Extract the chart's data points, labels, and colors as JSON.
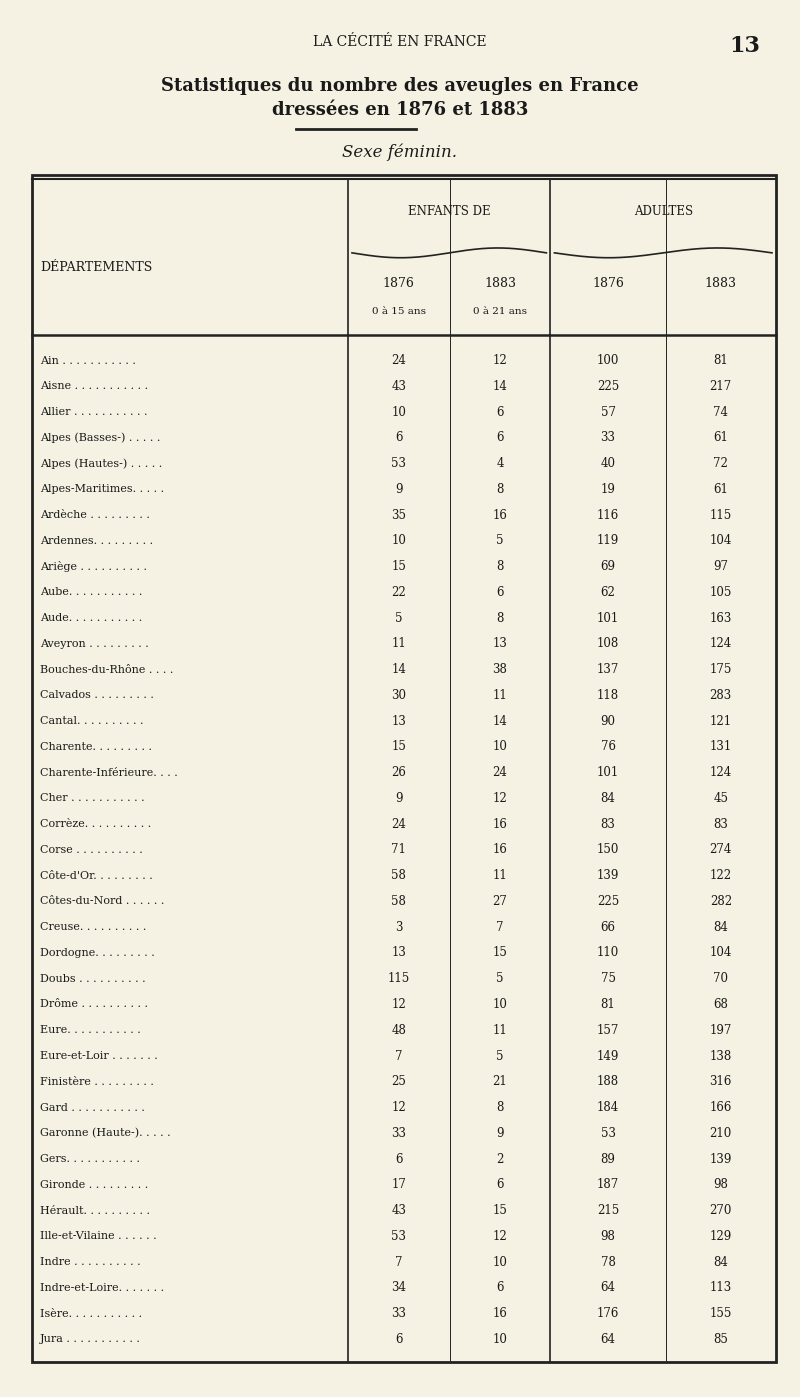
{
  "page_header": "LA CÉCITÉ EN FRANCE",
  "page_number": "13",
  "title_line1": "Statistiques du nombre des aveugles en France",
  "title_line2": "dressées en 1876 et 1883",
  "subtitle": "Sexe féminin.",
  "col_header_enfants": "ENFANTS DE",
  "col_header_adultes": "ADULTES",
  "col_sub1": "1876",
  "col_sub2": "1883",
  "col_sub1_note": "0 à 15 ans",
  "col_sub2_note": "0 à 21 ans",
  "col_sub3": "1876",
  "col_sub4": "1883",
  "col_dept": "DÉPARTEMENTS",
  "rows": [
    [
      "Ain . . . . . . . . . . .",
      "24",
      "12",
      "100",
      "81"
    ],
    [
      "Aisne . . . . . . . . . . .",
      "43",
      "14",
      "225",
      "217"
    ],
    [
      "Allier . . . . . . . . . . .",
      "10",
      "6",
      "57",
      "74"
    ],
    [
      "Alpes (Basses-) . . . . .",
      "6",
      "6",
      "33",
      "61"
    ],
    [
      "Alpes (Hautes-) . . . . .",
      "53",
      "4",
      "40",
      "72"
    ],
    [
      "Alpes-Maritimes. . . . .",
      "9",
      "8",
      "19",
      "61"
    ],
    [
      "Ardèche . . . . . . . . .",
      "35",
      "16",
      "116",
      "115"
    ],
    [
      "Ardennes. . . . . . . . .",
      "10",
      "5",
      "119",
      "104"
    ],
    [
      "Ariège . . . . . . . . . .",
      "15",
      "8",
      "69",
      "97"
    ],
    [
      "Aube. . . . . . . . . . .",
      "22",
      "6",
      "62",
      "105"
    ],
    [
      "Aude. . . . . . . . . . .",
      "5",
      "8",
      "101",
      "163"
    ],
    [
      "Aveyron . . . . . . . . .",
      "11",
      "13",
      "108",
      "124"
    ],
    [
      "Bouches-du-Rhône . . . .",
      "14",
      "38",
      "137",
      "175"
    ],
    [
      "Calvados . . . . . . . . .",
      "30",
      "11",
      "118",
      "283"
    ],
    [
      "Cantal. . . . . . . . . .",
      "13",
      "14",
      "90",
      "121"
    ],
    [
      "Charente. . . . . . . . .",
      "15",
      "10",
      "76",
      "131"
    ],
    [
      "Charente-Inférieure. . . .",
      "26",
      "24",
      "101",
      "124"
    ],
    [
      "Cher . . . . . . . . . . .",
      "9",
      "12",
      "84",
      "45"
    ],
    [
      "Corrèze. . . . . . . . . .",
      "24",
      "16",
      "83",
      "83"
    ],
    [
      "Corse . . . . . . . . . .",
      "71",
      "16",
      "150",
      "274"
    ],
    [
      "Côte-d'Or. . . . . . . . .",
      "58",
      "11",
      "139",
      "122"
    ],
    [
      "Côtes-du-Nord . . . . . .",
      "58",
      "27",
      "225",
      "282"
    ],
    [
      "Creuse. . . . . . . . . .",
      "3",
      "7",
      "66",
      "84"
    ],
    [
      "Dordogne. . . . . . . . .",
      "13",
      "15",
      "110",
      "104"
    ],
    [
      "Doubs . . . . . . . . . .",
      "115",
      "5",
      "75",
      "70"
    ],
    [
      "Drôme . . . . . . . . . .",
      "12",
      "10",
      "81",
      "68"
    ],
    [
      "Eure. . . . . . . . . . .",
      "48",
      "11",
      "157",
      "197"
    ],
    [
      "Eure-et-Loir . . . . . . .",
      "7",
      "5",
      "149",
      "138"
    ],
    [
      "Finistère . . . . . . . . .",
      "25",
      "21",
      "188",
      "316"
    ],
    [
      "Gard . . . . . . . . . . .",
      "12",
      "8",
      "184",
      "166"
    ],
    [
      "Garonne (Haute-). . . . .",
      "33",
      "9",
      "53",
      "210"
    ],
    [
      "Gers. . . . . . . . . . .",
      "6",
      "2",
      "89",
      "139"
    ],
    [
      "Gironde . . . . . . . . .",
      "17",
      "6",
      "187",
      "98"
    ],
    [
      "Hérault. . . . . . . . . .",
      "43",
      "15",
      "215",
      "270"
    ],
    [
      "Ille-et-Vilaine . . . . . .",
      "53",
      "12",
      "98",
      "129"
    ],
    [
      "Indre . . . . . . . . . .",
      "7",
      "10",
      "78",
      "84"
    ],
    [
      "Indre-et-Loire. . . . . . .",
      "34",
      "6",
      "64",
      "113"
    ],
    [
      "Isère. . . . . . . . . . .",
      "33",
      "16",
      "176",
      "155"
    ],
    [
      "Jura . . . . . . . . . . .",
      "6",
      "10",
      "64",
      "85"
    ]
  ],
  "bg_color": "#f5f2e3",
  "text_color": "#1a1a1a",
  "table_border_color": "#222222"
}
